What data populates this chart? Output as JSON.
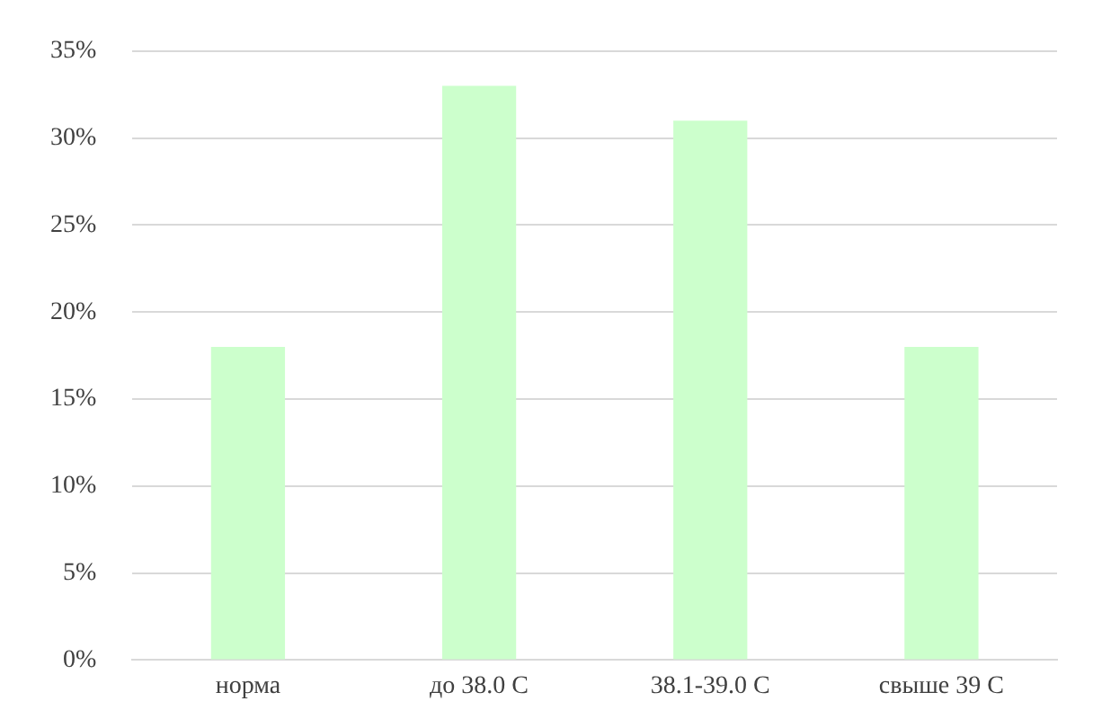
{
  "chart_data": {
    "type": "bar",
    "categories": [
      "норма",
      "до 38.0 С",
      "38.1-39.0 С",
      "свыше 39 С"
    ],
    "values": [
      18,
      33,
      31,
      18
    ],
    "color": "#ccffcc",
    "ylim": [
      0,
      35
    ],
    "yticks": [
      {
        "value": 0,
        "label": "0%"
      },
      {
        "value": 5,
        "label": "5%"
      },
      {
        "value": 10,
        "label": "10%"
      },
      {
        "value": 15,
        "label": "15%"
      },
      {
        "value": 20,
        "label": "20%"
      },
      {
        "value": 25,
        "label": "25%"
      },
      {
        "value": 30,
        "label": "30%"
      },
      {
        "value": 35,
        "label": "35%"
      }
    ],
    "grid": "y"
  }
}
